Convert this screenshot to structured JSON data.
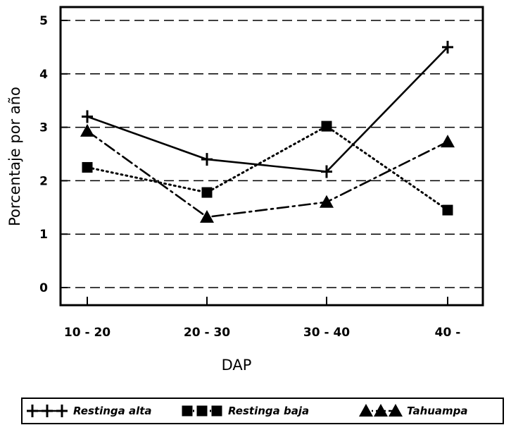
{
  "chart_data": {
    "type": "line",
    "title": "",
    "xlabel": "DAP",
    "ylabel": "Porcentaje por año",
    "categories": [
      "10 - 20",
      "20 - 30",
      "30 - 40",
      "40 -"
    ],
    "ylim": [
      0,
      5
    ],
    "yticks": [
      "0",
      "1",
      "2",
      "3",
      "4",
      "5"
    ],
    "grid": "horizontal dashed",
    "legend_position": "bottom",
    "series": [
      {
        "name": "Restinga alta",
        "marker": "plus",
        "line": "solid",
        "values": [
          3.2,
          2.4,
          2.17,
          4.5
        ]
      },
      {
        "name": "Restinga baja",
        "marker": "square",
        "line": "dotted",
        "values": [
          2.25,
          1.78,
          3.02,
          1.45
        ]
      },
      {
        "name": "Tahuampa",
        "marker": "triangle",
        "line": "dash-dot",
        "values": [
          2.93,
          1.32,
          1.6,
          2.73
        ]
      }
    ]
  }
}
